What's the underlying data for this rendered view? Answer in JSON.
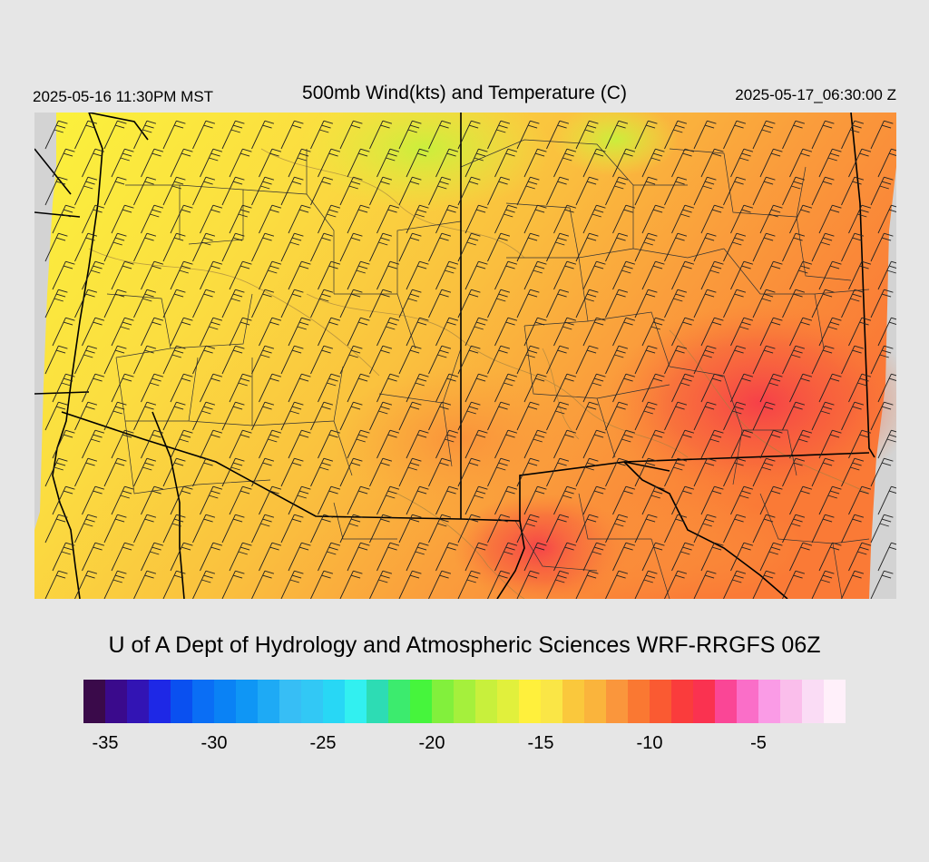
{
  "header": {
    "local_time": "2025-05-16 11:30PM MST",
    "title": "500mb Wind(kts) and Temperature (C)",
    "valid_time": "2025-05-17_06:30:00 Z"
  },
  "footer": {
    "credit": "U of A Dept of Hydrology and Atmospheric Sciences WRF-RRGFS 06Z"
  },
  "colorbar": {
    "min": -36,
    "step": 1,
    "colors": [
      "#3a0a4a",
      "#3a0a8c",
      "#3214b4",
      "#1e28e6",
      "#0a50f0",
      "#0a6ef5",
      "#0a82f5",
      "#0f96f5",
      "#1eaaf5",
      "#37bef5",
      "#32c8f5",
      "#28d7f5",
      "#32f0f0",
      "#2ddcb4",
      "#3ceb6e",
      "#46f53c",
      "#82f03c",
      "#a5f03c",
      "#c8f03c",
      "#e1f03c",
      "#fff03c",
      "#fae646",
      "#fac83c",
      "#fab43c",
      "#fa963c",
      "#fa7832",
      "#fa5a32",
      "#fa3c3c",
      "#fa3250",
      "#fa4696",
      "#fa6ec8",
      "#fa9be6",
      "#fabeeb",
      "#fadcf5",
      "#fff0fa"
    ],
    "ticks": [
      {
        "label": "-35",
        "value": -35
      },
      {
        "label": "-30",
        "value": -30
      },
      {
        "label": "-25",
        "value": -25
      },
      {
        "label": "-20",
        "value": -20
      },
      {
        "label": "-15",
        "value": -15
      },
      {
        "label": "-10",
        "value": -10
      },
      {
        "label": "-5",
        "value": -5
      }
    ]
  }
}
